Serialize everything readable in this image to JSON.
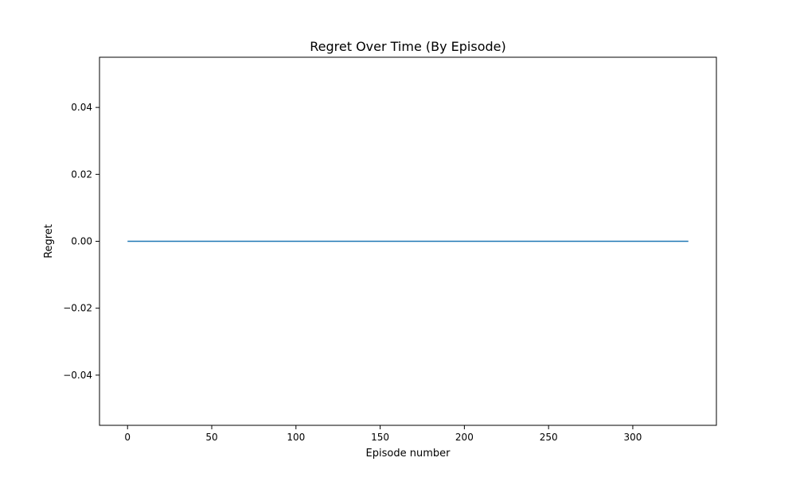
{
  "chart_data": {
    "type": "line",
    "title": "Regret Over Time (By Episode)",
    "xlabel": "Episode number",
    "ylabel": "Regret",
    "xlim": [
      -16.65,
      349.65
    ],
    "ylim": [
      -0.055,
      0.055
    ],
    "xticks": [
      0,
      50,
      100,
      150,
      200,
      250,
      300
    ],
    "xtick_labels": [
      "0",
      "50",
      "100",
      "150",
      "200",
      "250",
      "300"
    ],
    "yticks": [
      -0.04,
      -0.02,
      0.0,
      0.02,
      0.04
    ],
    "ytick_labels": [
      "−0.04",
      "−0.02",
      "0.00",
      "0.02",
      "0.04"
    ],
    "grid": false,
    "series": [
      {
        "color": "#1f77b4",
        "x": [
          0,
          333
        ],
        "y": [
          0,
          0
        ]
      }
    ]
  }
}
